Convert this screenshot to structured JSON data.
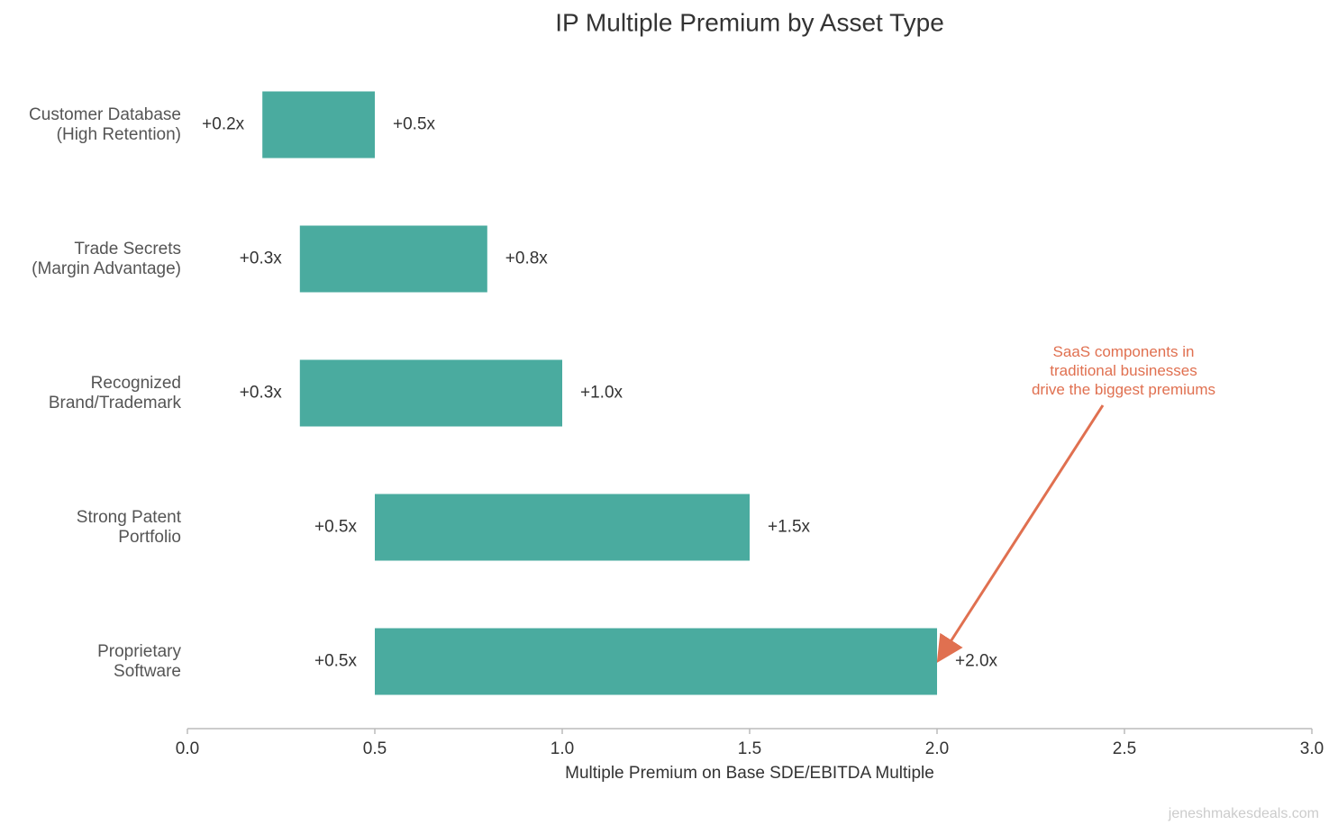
{
  "chart_data": {
    "type": "range-bar",
    "orientation": "horizontal",
    "title": "IP Multiple Premium by Asset Type",
    "x_label": "Multiple Premium on Base SDE/EBITDA Multiple",
    "categories": [
      "Customer Database\n(High Retention)",
      "Trade Secrets\n(Margin Advantage)",
      "Recognized\nBrand/Trademark",
      "Strong Patent\nPortfolio",
      "Proprietary\nSoftware"
    ],
    "values": [
      [
        0.2,
        0.5
      ],
      [
        0.3,
        0.8
      ],
      [
        0.3,
        1.0
      ],
      [
        0.5,
        1.5
      ],
      [
        0.5,
        2.0
      ]
    ],
    "value_labels": [
      [
        "+0.2x",
        "+0.5x"
      ],
      [
        "+0.3x",
        "+0.8x"
      ],
      [
        "+0.3x",
        "+1.0x"
      ],
      [
        "+0.5x",
        "+1.5x"
      ],
      [
        "+0.5x",
        "+2.0x"
      ]
    ],
    "color": "#4aab9f",
    "xlim": [
      0,
      3
    ],
    "xticks": [
      {
        "value": 0,
        "label": "0.0"
      },
      0.5,
      {
        "value": 1,
        "label": "1.0"
      },
      1.5,
      {
        "value": 2,
        "label": "2.0"
      },
      2.5,
      {
        "value": 3,
        "label": "3.0"
      }
    ],
    "annotation": {
      "text": "SaaS components in\ntraditional businesses\ndrive the biggest premiums",
      "color": "#e07050"
    },
    "watermark": "jeneshmakesdeals.com"
  }
}
